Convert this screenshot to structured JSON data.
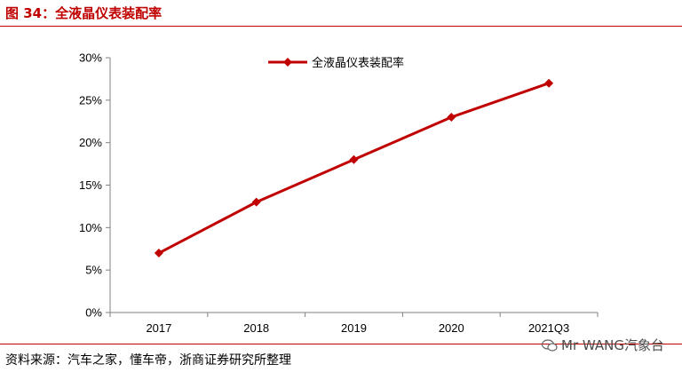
{
  "figure_title": "图 34：全液晶仪表装配率",
  "source_note": "资料来源：汽车之家，懂车帝，浙商证券研究所整理",
  "watermark": "Mr WANG汽象台",
  "colors": {
    "accent": "#c00000",
    "axis": "#808080"
  },
  "chart_data": {
    "type": "line",
    "categories": [
      "2017",
      "2018",
      "2019",
      "2020",
      "2021Q3"
    ],
    "series": [
      {
        "name": "全液晶仪表装配率",
        "values": [
          0.07,
          0.13,
          0.18,
          0.23,
          0.27
        ],
        "color": "#c00000",
        "marker": "diamond"
      }
    ],
    "ylim": [
      0,
      0.3
    ],
    "yticks": [
      "0%",
      "5%",
      "10%",
      "15%",
      "20%",
      "25%",
      "30%"
    ],
    "grid": false,
    "legend_position": "top"
  }
}
